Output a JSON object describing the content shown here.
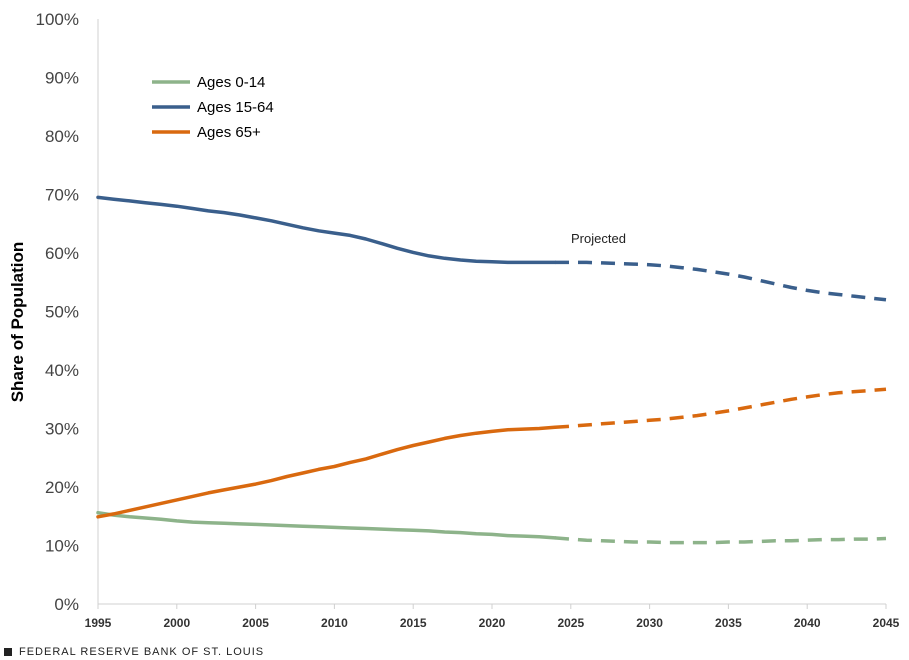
{
  "chart_data": {
    "type": "line",
    "title": "",
    "xlabel": "",
    "ylabel": "Share of Population",
    "xlim": [
      1995,
      2045
    ],
    "ylim": [
      0,
      100
    ],
    "y_ticks": [
      0,
      10,
      20,
      30,
      40,
      50,
      60,
      70,
      80,
      90,
      100
    ],
    "y_tick_labels": [
      "0%",
      "10%",
      "20%",
      "30%",
      "40%",
      "50%",
      "60%",
      "70%",
      "80%",
      "90%",
      "100%"
    ],
    "x_ticks": [
      1995,
      2000,
      2005,
      2010,
      2015,
      2020,
      2025,
      2030,
      2035,
      2040,
      2045
    ],
    "x_tick_labels": [
      "1995",
      "2000",
      "2005",
      "2010",
      "2015",
      "2020",
      "2025",
      "2030",
      "2035",
      "2040",
      "2045"
    ],
    "grid": false,
    "legend_position": "top-left",
    "projection_start": 2024,
    "annotation": "Projected",
    "x": [
      1995,
      1996,
      1997,
      1998,
      1999,
      2000,
      2001,
      2002,
      2003,
      2004,
      2005,
      2006,
      2007,
      2008,
      2009,
      2010,
      2011,
      2012,
      2013,
      2014,
      2015,
      2016,
      2017,
      2018,
      2019,
      2020,
      2021,
      2022,
      2023,
      2024,
      2025,
      2026,
      2027,
      2028,
      2029,
      2030,
      2031,
      2032,
      2033,
      2034,
      2035,
      2036,
      2037,
      2038,
      2039,
      2040,
      2041,
      2042,
      2043,
      2044,
      2045
    ],
    "series": [
      {
        "name": "Ages 0-14",
        "color": "#8db38a",
        "values": [
          15.6,
          15.2,
          14.9,
          14.7,
          14.5,
          14.2,
          14.0,
          13.9,
          13.8,
          13.7,
          13.6,
          13.5,
          13.4,
          13.3,
          13.2,
          13.1,
          13.0,
          12.9,
          12.8,
          12.7,
          12.6,
          12.5,
          12.3,
          12.2,
          12.0,
          11.9,
          11.7,
          11.6,
          11.5,
          11.3,
          11.1,
          10.9,
          10.8,
          10.7,
          10.6,
          10.6,
          10.5,
          10.5,
          10.5,
          10.5,
          10.6,
          10.6,
          10.7,
          10.8,
          10.8,
          10.9,
          11.0,
          11.0,
          11.1,
          11.1,
          11.2
        ]
      },
      {
        "name": "Ages 15-64",
        "color": "#3a5f8c",
        "values": [
          69.5,
          69.2,
          68.9,
          68.6,
          68.3,
          68.0,
          67.6,
          67.2,
          66.9,
          66.5,
          66.0,
          65.5,
          64.9,
          64.3,
          63.8,
          63.4,
          63.0,
          62.4,
          61.6,
          60.8,
          60.1,
          59.5,
          59.1,
          58.8,
          58.6,
          58.5,
          58.4,
          58.4,
          58.4,
          58.4,
          58.4,
          58.4,
          58.3,
          58.2,
          58.1,
          58.0,
          57.8,
          57.5,
          57.2,
          56.8,
          56.4,
          55.9,
          55.3,
          54.7,
          54.1,
          53.6,
          53.2,
          52.9,
          52.6,
          52.3,
          52.0
        ]
      },
      {
        "name": "Ages 65+",
        "color": "#d9690f",
        "values": [
          14.9,
          15.4,
          16.0,
          16.6,
          17.2,
          17.8,
          18.4,
          19.0,
          19.5,
          20.0,
          20.5,
          21.1,
          21.8,
          22.4,
          23.0,
          23.5,
          24.2,
          24.8,
          25.6,
          26.4,
          27.1,
          27.7,
          28.3,
          28.8,
          29.2,
          29.5,
          29.8,
          29.9,
          30.0,
          30.2,
          30.4,
          30.6,
          30.8,
          31.0,
          31.2,
          31.4,
          31.6,
          31.9,
          32.2,
          32.6,
          33.0,
          33.5,
          34.0,
          34.5,
          35.0,
          35.4,
          35.8,
          36.1,
          36.3,
          36.5,
          36.7
        ]
      }
    ]
  },
  "footer": {
    "text": "FEDERAL RESERVE BANK OF ST. LOUIS"
  }
}
